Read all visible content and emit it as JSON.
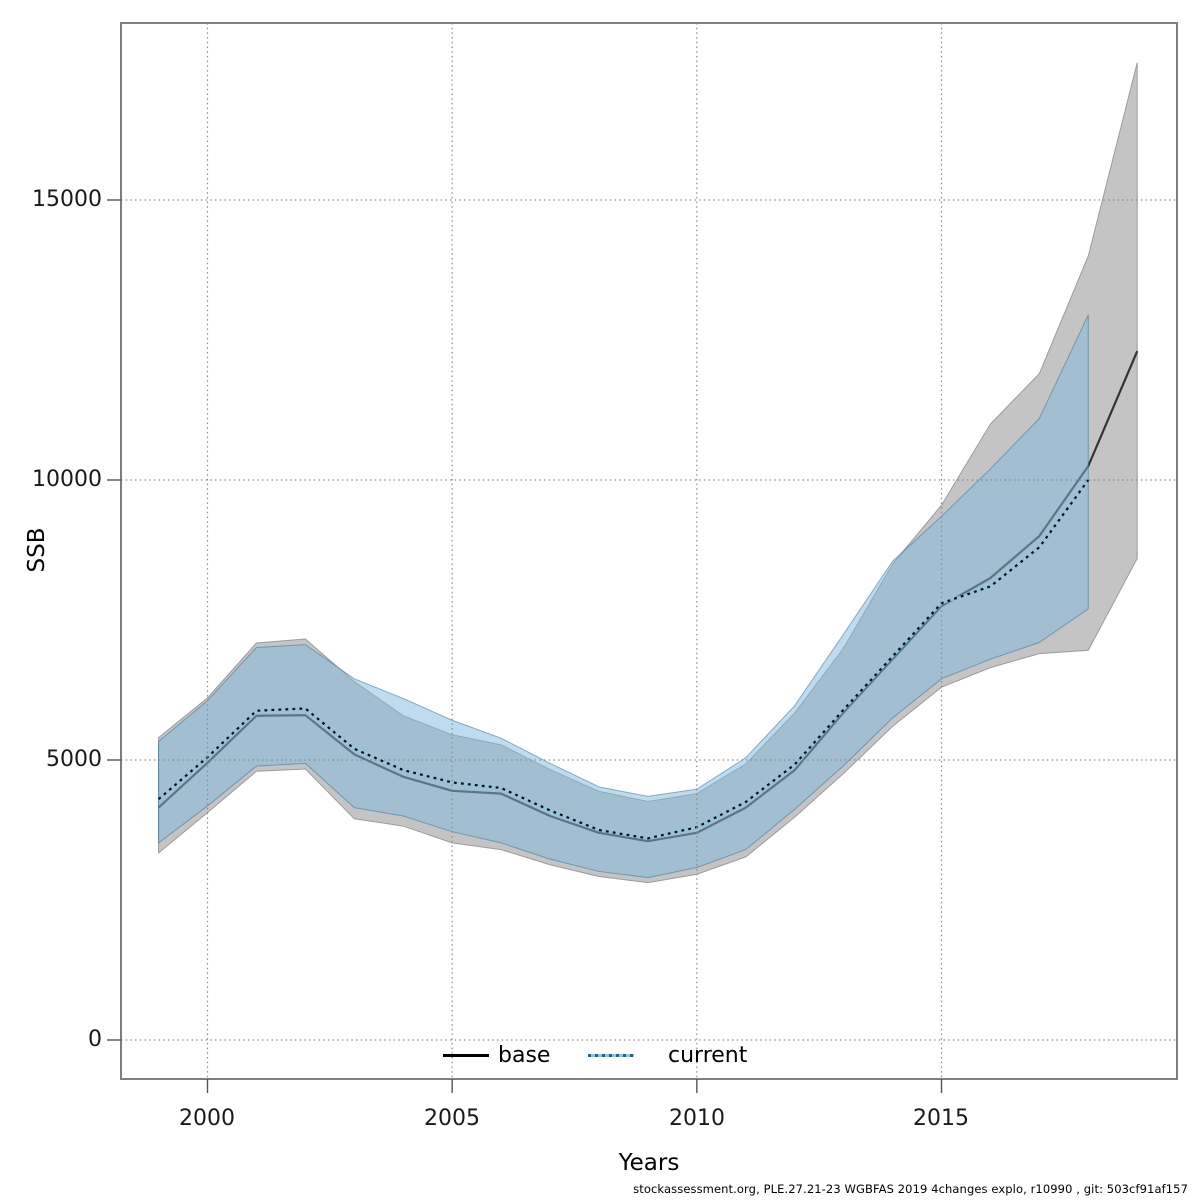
{
  "footer": {
    "text": "stockassessment.org, PLE.27.21-23 WGBFAS 2019 4changes explo, r10990 , git: 503cf91af157"
  },
  "chart_data": {
    "type": "line",
    "title": "",
    "xlabel": "Years",
    "ylabel": "SSB",
    "grid": "dotted",
    "legend_position": "bottom-center-inside",
    "xlim": [
      1998.2,
      2019.8
    ],
    "ylim": [
      -700,
      18150
    ],
    "colors": {
      "base_line": "#333333",
      "base_band_fill": "#c4c4c4",
      "base_band_stroke": "#9c9c9c",
      "current_line_dash": "#0d0d0d",
      "current_line_under": "#8ec6e6",
      "current_band_fill": "rgba(125,185,220,0.5)",
      "current_band_stroke": "rgba(60,115,155,0.55)",
      "grid": "#8a8a8a",
      "frame": "#7f7f7f",
      "tick": "#555555"
    },
    "xaxis": {
      "title": "Years",
      "ticks": [
        {
          "value": 2000,
          "label": "2000"
        },
        {
          "value": 2005,
          "label": "2005"
        },
        {
          "value": 2010,
          "label": "2010"
        },
        {
          "value": 2015,
          "label": "2015"
        }
      ]
    },
    "yaxis": {
      "title": "SSB",
      "ticks": [
        {
          "value": 15000,
          "label": "15000"
        },
        {
          "value": 10000,
          "label": "10000"
        },
        {
          "value": 5000,
          "label": "5000"
        },
        {
          "value": 0,
          "label": "0"
        }
      ]
    },
    "legend": {
      "items": [
        {
          "label": "base",
          "line_style": "solid",
          "line_color": "black"
        },
        {
          "label": "current",
          "line_style": "dotted",
          "line_color": "light-blue"
        }
      ]
    },
    "years": [
      1999,
      2000,
      2001,
      2002,
      2003,
      2004,
      2005,
      2006,
      2007,
      2008,
      2009,
      2010,
      2011,
      2012,
      2013,
      2014,
      2015,
      2016,
      2017,
      2018,
      2019
    ],
    "series": [
      {
        "name": "base",
        "style": "solid",
        "values": [
          4150,
          4950,
          5790,
          5800,
          5100,
          4700,
          4450,
          4400,
          4000,
          3700,
          3550,
          3700,
          4150,
          4820,
          5850,
          6800,
          7750,
          8250,
          9000,
          10250,
          12300
        ]
      },
      {
        "name": "current",
        "style": "dotted",
        "values": [
          4300,
          5050,
          5880,
          5920,
          5200,
          4820,
          4600,
          4500,
          4100,
          3750,
          3600,
          3800,
          4250,
          4920,
          5900,
          6850,
          7800,
          8100,
          8800,
          10000,
          null
        ]
      }
    ],
    "bands": [
      {
        "name": "base-ci",
        "lo": [
          3340,
          4060,
          4800,
          4840,
          3950,
          3820,
          3520,
          3400,
          3130,
          2920,
          2810,
          2960,
          3270,
          3980,
          4760,
          5600,
          6300,
          6650,
          6900,
          6960,
          8600
        ],
        "hi": [
          5400,
          6110,
          7090,
          7160,
          6400,
          5790,
          5450,
          5270,
          4830,
          4440,
          4260,
          4400,
          4930,
          5840,
          7000,
          8500,
          9550,
          11000,
          11900,
          14000,
          17450
        ]
      },
      {
        "name": "current-ci",
        "lo": [
          3520,
          4180,
          4890,
          4940,
          4150,
          4000,
          3720,
          3520,
          3230,
          3010,
          2900,
          3080,
          3400,
          4120,
          4900,
          5750,
          6450,
          6800,
          7100,
          7700,
          null
        ],
        "hi": [
          5330,
          6060,
          7010,
          7060,
          6450,
          6100,
          5710,
          5390,
          4940,
          4520,
          4350,
          4480,
          5040,
          5970,
          7250,
          8550,
          9350,
          10200,
          11100,
          12950,
          null
        ]
      }
    ]
  }
}
